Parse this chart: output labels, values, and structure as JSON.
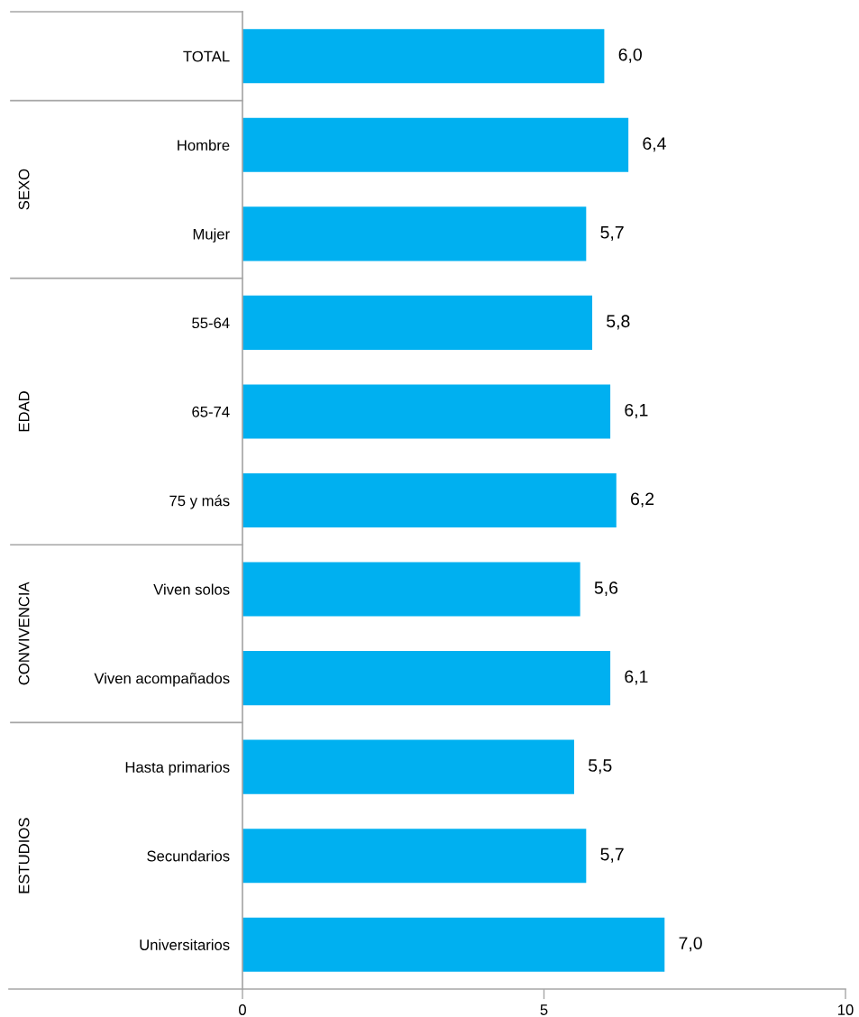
{
  "chart_data": {
    "type": "bar",
    "orientation": "horizontal",
    "categories": [
      "TOTAL",
      "Hombre",
      "Mujer",
      "55-64",
      "65-74",
      "75 y más",
      "Viven solos",
      "Viven acompañados",
      "Hasta primarios",
      "Secundarios",
      "Universitarios"
    ],
    "values": [
      6.0,
      6.4,
      5.7,
      5.8,
      6.1,
      6.2,
      5.6,
      6.1,
      5.5,
      5.7,
      7.0
    ],
    "color": "#00b0f0",
    "value_labels": [
      "6,0",
      "6,4",
      "5,7",
      "5,8",
      "6,1",
      "6,2",
      "5,6",
      "6,1",
      "5,5",
      "5,7",
      "7,0"
    ],
    "annotations": [
      "SEXO",
      "EDAD",
      "CONVIVENCIA",
      "ESTUDIOS"
    ],
    "xlim": [
      0,
      10
    ],
    "xticks": [
      0,
      5,
      10
    ],
    "grid": false
  }
}
